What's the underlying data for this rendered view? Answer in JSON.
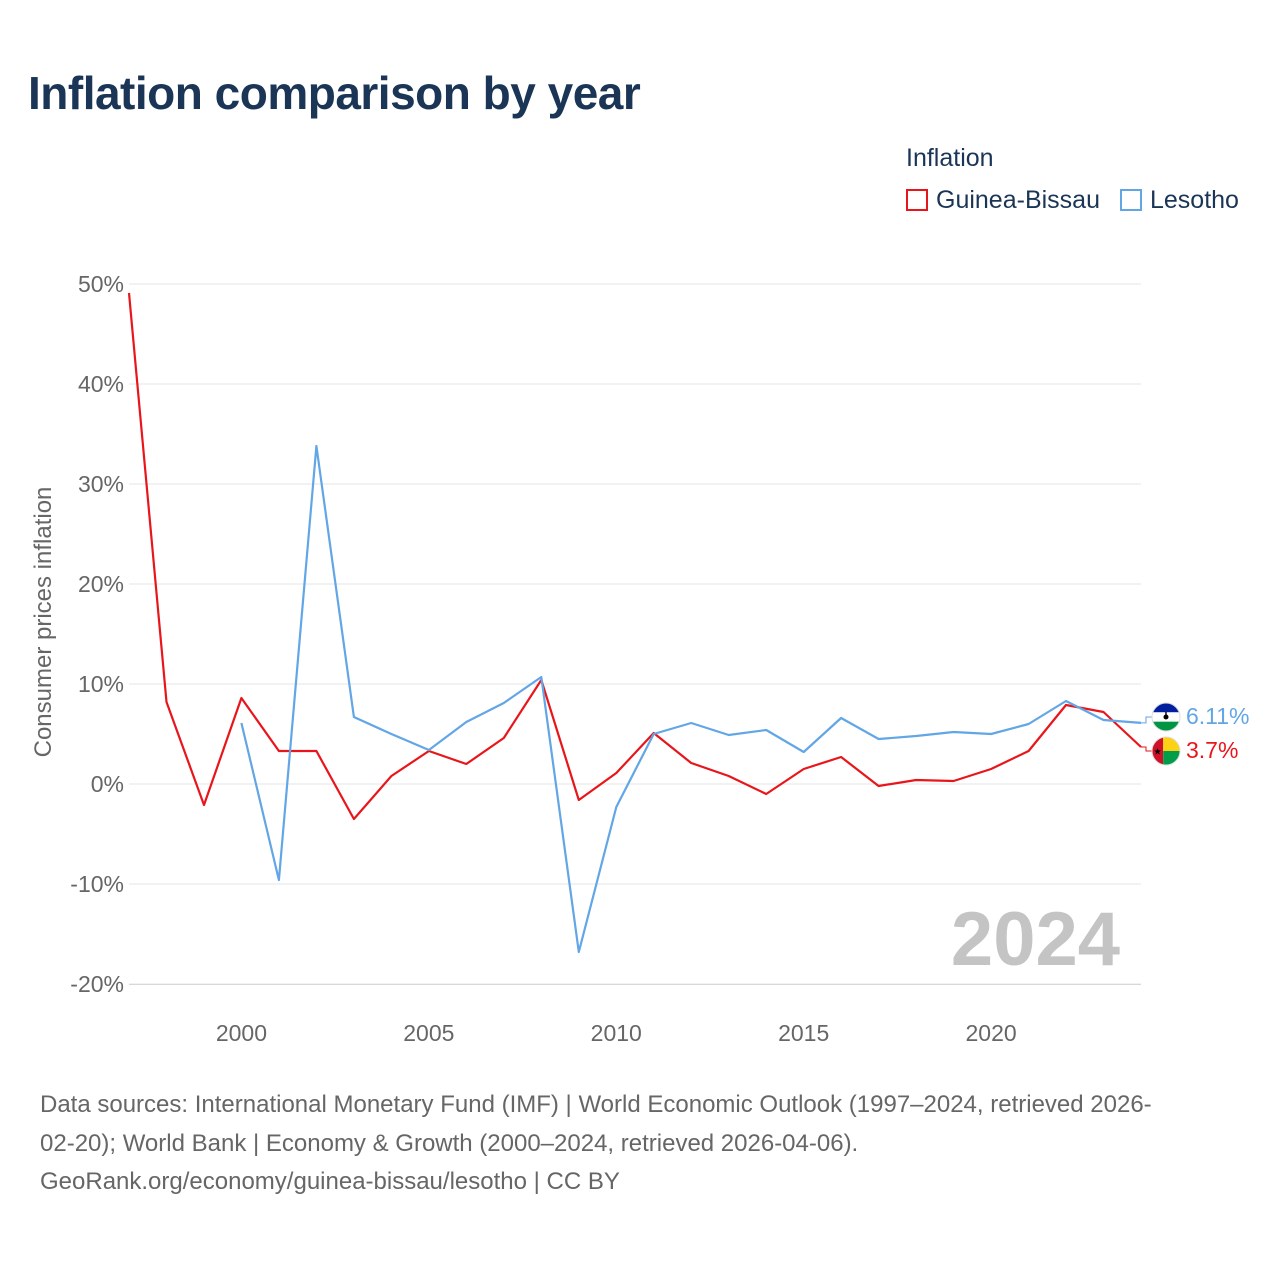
{
  "title": "Inflation comparison by year",
  "legend": {
    "title": "Inflation",
    "items": [
      {
        "label": "Guinea-Bissau",
        "color": "#e8161b"
      },
      {
        "label": "Lesotho",
        "color": "#62a6e6"
      }
    ]
  },
  "chart_data": {
    "type": "line",
    "title": "Inflation comparison by year",
    "xlabel": "",
    "ylabel": "Consumer prices inflation",
    "xlim": [
      1997,
      2024
    ],
    "ylim": [
      -20,
      50
    ],
    "yticks": [
      -20,
      -10,
      0,
      10,
      20,
      30,
      40,
      50
    ],
    "ytick_labels": [
      "-20%",
      "-10%",
      "0%",
      "10%",
      "20%",
      "30%",
      "40%",
      "50%"
    ],
    "xticks": [
      2000,
      2005,
      2010,
      2015,
      2020
    ],
    "xtick_labels": [
      "2000",
      "2005",
      "2010",
      "2015",
      "2020"
    ],
    "year_watermark": "2024",
    "series": [
      {
        "name": "Guinea-Bissau",
        "color": "#e8161b",
        "x": [
          1997,
          1998,
          1999,
          2000,
          2001,
          2002,
          2003,
          2004,
          2005,
          2006,
          2007,
          2008,
          2009,
          2010,
          2011,
          2012,
          2013,
          2014,
          2015,
          2016,
          2017,
          2018,
          2019,
          2020,
          2021,
          2022,
          2023,
          2024
        ],
        "values": [
          49.1,
          8.2,
          -2.1,
          8.6,
          3.3,
          3.3,
          -3.5,
          0.8,
          3.3,
          2.0,
          4.6,
          10.4,
          -1.6,
          1.1,
          5.1,
          2.1,
          0.8,
          -1.0,
          1.5,
          2.7,
          -0.2,
          0.4,
          0.3,
          1.5,
          3.3,
          7.9,
          7.2,
          3.7
        ],
        "end_label": "3.7%"
      },
      {
        "name": "Lesotho",
        "color": "#62a6e6",
        "x": [
          2000,
          2001,
          2002,
          2003,
          2004,
          2005,
          2006,
          2007,
          2008,
          2009,
          2010,
          2011,
          2012,
          2013,
          2014,
          2015,
          2016,
          2017,
          2018,
          2019,
          2020,
          2021,
          2022,
          2023,
          2024
        ],
        "values": [
          6.1,
          -9.6,
          33.8,
          6.7,
          5.0,
          3.4,
          6.2,
          8.1,
          10.7,
          -16.8,
          -2.3,
          5.0,
          6.1,
          4.9,
          5.4,
          3.2,
          6.6,
          4.5,
          4.8,
          5.2,
          5.0,
          6.0,
          8.3,
          6.4,
          6.11
        ],
        "end_label": "6.11%"
      }
    ]
  },
  "footer": {
    "line1": "Data sources: International Monetary Fund (IMF) | World Economic Outlook (1997–2024, retrieved 2026-",
    "line2": "02-20); World Bank | Economy & Growth (2000–2024, retrieved 2026-04-06).",
    "line3": "GeoRank.org/economy/guinea-bissau/lesotho | CC BY"
  }
}
